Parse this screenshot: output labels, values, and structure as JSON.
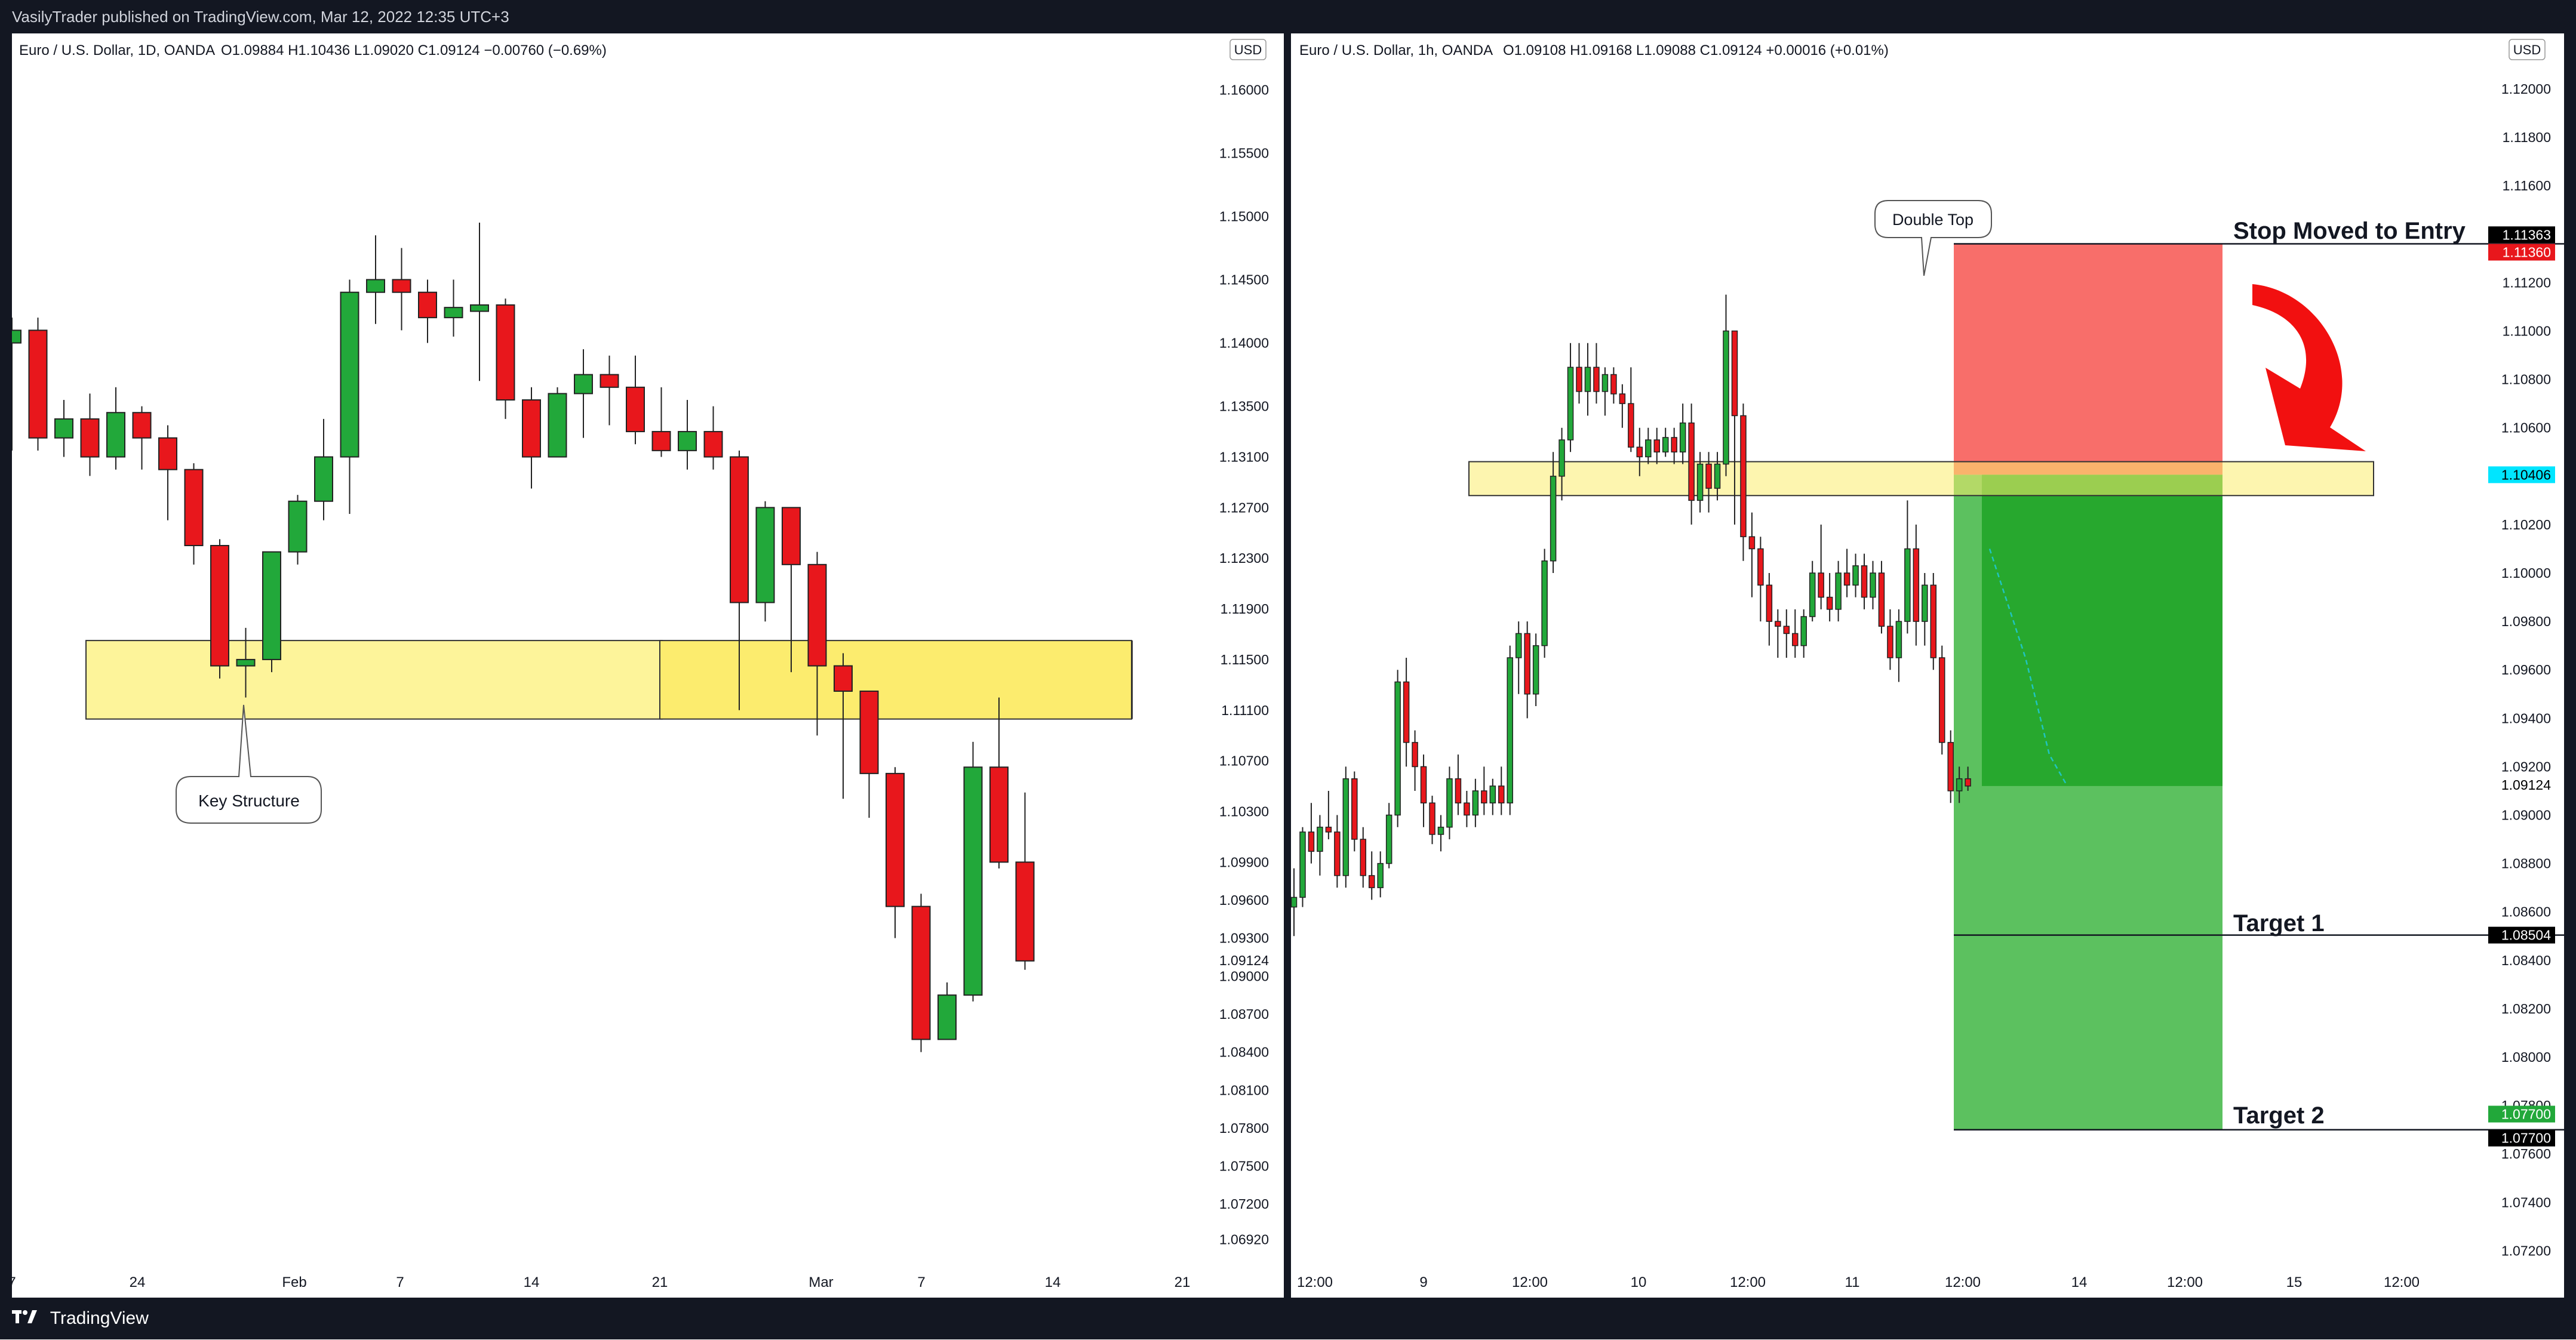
{
  "header": {
    "publish_line": "VasilyTrader published on TradingView.com, Mar 12, 2022 12:35 UTC+3"
  },
  "footer": {
    "brand": "TradingView"
  },
  "colors": {
    "up": "#22a83a",
    "down": "#e8171c",
    "zone": "#fdf49a",
    "zone_dark": "#fcec6e",
    "stop_zone": "#f86e6a",
    "target_zone": "#5cc15f",
    "target_inner": "#27a82e"
  },
  "chart_data": [
    {
      "type": "candlestick",
      "title": "Euro / U.S. Dollar, 1D, OANDA",
      "ohlc_text": "O1.09884  H1.10436  L1.09020  C1.09124  −0.00760 (−0.69%)",
      "currency": "USD",
      "y_ticks": [
        "1.16000",
        "1.15500",
        "1.15000",
        "1.14500",
        "1.14000",
        "1.13500",
        "1.13100",
        "1.12700",
        "1.12300",
        "1.11900",
        "1.11500",
        "1.11100",
        "1.10700",
        "1.10300",
        "1.09900",
        "1.09600",
        "1.09300",
        "1.09000",
        "1.08700",
        "1.08400",
        "1.08100",
        "1.07800",
        "1.07500",
        "1.07200",
        "1.06920"
      ],
      "last_price": "1.09124",
      "ylim": [
        1.0664,
        1.1635
      ],
      "x_ticks": [
        "7",
        "24",
        "Feb",
        "7",
        "14",
        "21",
        "Mar",
        "7",
        "14",
        "21"
      ],
      "candles": [
        {
          "o": 1.14,
          "h": 1.142,
          "l": 1.1315,
          "c": 1.141
        },
        {
          "o": 1.141,
          "h": 1.142,
          "l": 1.1315,
          "c": 1.1325
        },
        {
          "o": 1.1325,
          "h": 1.1355,
          "l": 1.131,
          "c": 1.134
        },
        {
          "o": 1.134,
          "h": 1.136,
          "l": 1.1295,
          "c": 1.131
        },
        {
          "o": 1.131,
          "h": 1.1365,
          "l": 1.13,
          "c": 1.1345
        },
        {
          "o": 1.1345,
          "h": 1.135,
          "l": 1.13,
          "c": 1.1325
        },
        {
          "o": 1.1325,
          "h": 1.1335,
          "l": 1.126,
          "c": 1.13
        },
        {
          "o": 1.13,
          "h": 1.1305,
          "l": 1.1225,
          "c": 1.124
        },
        {
          "o": 1.124,
          "h": 1.1245,
          "l": 1.1135,
          "c": 1.1145
        },
        {
          "o": 1.1145,
          "h": 1.1175,
          "l": 1.112,
          "c": 1.115
        },
        {
          "o": 1.115,
          "h": 1.123,
          "l": 1.114,
          "c": 1.1235
        },
        {
          "o": 1.1235,
          "h": 1.128,
          "l": 1.1225,
          "c": 1.1275
        },
        {
          "o": 1.1275,
          "h": 1.134,
          "l": 1.126,
          "c": 1.131
        },
        {
          "o": 1.131,
          "h": 1.145,
          "l": 1.1265,
          "c": 1.144
        },
        {
          "o": 1.144,
          "h": 1.1485,
          "l": 1.1415,
          "c": 1.145
        },
        {
          "o": 1.145,
          "h": 1.1475,
          "l": 1.141,
          "c": 1.144
        },
        {
          "o": 1.144,
          "h": 1.145,
          "l": 1.14,
          "c": 1.142
        },
        {
          "o": 1.142,
          "h": 1.145,
          "l": 1.1405,
          "c": 1.1428
        },
        {
          "o": 1.1425,
          "h": 1.1495,
          "l": 1.137,
          "c": 1.143
        },
        {
          "o": 1.143,
          "h": 1.1435,
          "l": 1.134,
          "c": 1.1355
        },
        {
          "o": 1.1355,
          "h": 1.1365,
          "l": 1.1285,
          "c": 1.131
        },
        {
          "o": 1.131,
          "h": 1.1365,
          "l": 1.131,
          "c": 1.136
        },
        {
          "o": 1.136,
          "h": 1.1395,
          "l": 1.1325,
          "c": 1.1375
        },
        {
          "o": 1.1375,
          "h": 1.139,
          "l": 1.1335,
          "c": 1.1365
        },
        {
          "o": 1.1365,
          "h": 1.139,
          "l": 1.132,
          "c": 1.133
        },
        {
          "o": 1.133,
          "h": 1.1365,
          "l": 1.131,
          "c": 1.1315
        },
        {
          "o": 1.1315,
          "h": 1.1355,
          "l": 1.13,
          "c": 1.133
        },
        {
          "o": 1.133,
          "h": 1.135,
          "l": 1.13,
          "c": 1.131
        },
        {
          "o": 1.131,
          "h": 1.1315,
          "l": 1.111,
          "c": 1.1195
        },
        {
          "o": 1.1195,
          "h": 1.1275,
          "l": 1.118,
          "c": 1.127
        },
        {
          "o": 1.127,
          "h": 1.127,
          "l": 1.114,
          "c": 1.1225
        },
        {
          "o": 1.1225,
          "h": 1.1235,
          "l": 1.109,
          "c": 1.1145
        },
        {
          "o": 1.1145,
          "h": 1.1155,
          "l": 1.104,
          "c": 1.1125
        },
        {
          "o": 1.1125,
          "h": 1.1125,
          "l": 1.1025,
          "c": 1.106
        },
        {
          "o": 1.106,
          "h": 1.1065,
          "l": 1.093,
          "c": 1.0955
        },
        {
          "o": 1.0955,
          "h": 1.0965,
          "l": 1.084,
          "c": 1.085
        },
        {
          "o": 1.085,
          "h": 1.0895,
          "l": 1.085,
          "c": 1.0885
        },
        {
          "o": 1.0885,
          "h": 1.1085,
          "l": 1.088,
          "c": 1.1065
        },
        {
          "o": 1.1065,
          "h": 1.112,
          "l": 1.0985,
          "c": 1.099
        },
        {
          "o": 1.099,
          "h": 1.1045,
          "l": 1.0905,
          "c": 1.0912
        }
      ],
      "annotations": [
        {
          "text": "Key Structure"
        }
      ]
    },
    {
      "type": "candlestick",
      "title": "Euro / U.S. Dollar, 1h, OANDA",
      "ohlc_text": "O1.09108  H1.09168  L1.09088  C1.09124  +0.00016 (+0.01%)",
      "currency": "USD",
      "y_ticks": [
        "1.12000",
        "1.11800",
        "1.11600",
        "1.11400",
        "1.11200",
        "1.11000",
        "1.10800",
        "1.10600",
        "1.10400",
        "1.10200",
        "1.10000",
        "1.09800",
        "1.09600",
        "1.09400",
        "1.09200",
        "1.09000",
        "1.08800",
        "1.08600",
        "1.08400",
        "1.08200",
        "1.08000",
        "1.07800",
        "1.07600",
        "1.07400",
        "1.07200"
      ],
      "ylim": [
        1.071,
        1.1218
      ],
      "x_ticks": [
        "12:00",
        "9",
        "12:00",
        "10",
        "12:00",
        "11",
        "12:00",
        "14",
        "12:00",
        "15",
        "12:00"
      ],
      "price_labels": [
        {
          "text": "1.11363",
          "bg": "#000000",
          "color": "#ffffff",
          "y": 1.11363
        },
        {
          "text": "1.11360",
          "bg": "#e8171c",
          "color": "#ffffff",
          "y": 1.1136
        },
        {
          "text": "1.10406",
          "bg": "#00e5ff",
          "color": "#000000",
          "y": 1.10406
        },
        {
          "text": "1.09124",
          "bg": "#ffffff",
          "color": "#000000",
          "y": 1.09124
        },
        {
          "text": "1.08504",
          "bg": "#000000",
          "color": "#ffffff",
          "y": 1.08504
        },
        {
          "text": "1.07700",
          "bg": "#22a83a",
          "color": "#ffffff",
          "y": 1.0773
        },
        {
          "text": "1.07700",
          "bg": "#000000",
          "color": "#ffffff",
          "y": 1.077
        }
      ],
      "levels": {
        "stop": 1.1136,
        "entry": 1.10406,
        "target1": 1.08504,
        "target2": 1.077
      },
      "annotations": [
        {
          "text": "Double Top"
        },
        {
          "text": "Stop Moved to Entry"
        },
        {
          "text": "Target 1"
        },
        {
          "text": "Target 2"
        }
      ],
      "candles": [
        {
          "o": 1.0862,
          "h": 1.0878,
          "l": 1.085,
          "c": 1.0866
        },
        {
          "o": 1.0866,
          "h": 1.0895,
          "l": 1.0862,
          "c": 1.0893
        },
        {
          "o": 1.0893,
          "h": 1.0905,
          "l": 1.088,
          "c": 1.0885
        },
        {
          "o": 1.0885,
          "h": 1.09,
          "l": 1.0875,
          "c": 1.0895
        },
        {
          "o": 1.0895,
          "h": 1.091,
          "l": 1.089,
          "c": 1.0893
        },
        {
          "o": 1.0893,
          "h": 1.09,
          "l": 1.087,
          "c": 1.0875
        },
        {
          "o": 1.0875,
          "h": 1.092,
          "l": 1.087,
          "c": 1.0915
        },
        {
          "o": 1.0915,
          "h": 1.0918,
          "l": 1.0885,
          "c": 1.089
        },
        {
          "o": 1.089,
          "h": 1.0895,
          "l": 1.087,
          "c": 1.0875
        },
        {
          "o": 1.0875,
          "h": 1.0885,
          "l": 1.0865,
          "c": 1.087
        },
        {
          "o": 1.087,
          "h": 1.0885,
          "l": 1.0866,
          "c": 1.088
        },
        {
          "o": 1.088,
          "h": 1.0905,
          "l": 1.0878,
          "c": 1.09
        },
        {
          "o": 1.09,
          "h": 1.096,
          "l": 1.0895,
          "c": 1.0955
        },
        {
          "o": 1.0955,
          "h": 1.0965,
          "l": 1.092,
          "c": 1.093
        },
        {
          "o": 1.093,
          "h": 1.0935,
          "l": 1.091,
          "c": 1.092
        },
        {
          "o": 1.092,
          "h": 1.0925,
          "l": 1.0895,
          "c": 1.0905
        },
        {
          "o": 1.0905,
          "h": 1.0908,
          "l": 1.0888,
          "c": 1.0892
        },
        {
          "o": 1.0892,
          "h": 1.09,
          "l": 1.0885,
          "c": 1.0895
        },
        {
          "o": 1.0895,
          "h": 1.092,
          "l": 1.089,
          "c": 1.0915
        },
        {
          "o": 1.0915,
          "h": 1.0925,
          "l": 1.09,
          "c": 1.0905
        },
        {
          "o": 1.0905,
          "h": 1.091,
          "l": 1.0895,
          "c": 1.09
        },
        {
          "o": 1.09,
          "h": 1.0915,
          "l": 1.0895,
          "c": 1.091
        },
        {
          "o": 1.091,
          "h": 1.092,
          "l": 1.09,
          "c": 1.0905
        },
        {
          "o": 1.0905,
          "h": 1.0915,
          "l": 1.09,
          "c": 1.0912
        },
        {
          "o": 1.0912,
          "h": 1.092,
          "l": 1.09,
          "c": 1.0905
        },
        {
          "o": 1.0905,
          "h": 1.097,
          "l": 1.09,
          "c": 1.0965
        },
        {
          "o": 1.0965,
          "h": 1.098,
          "l": 1.095,
          "c": 1.0975
        },
        {
          "o": 1.0975,
          "h": 1.098,
          "l": 1.094,
          "c": 1.095
        },
        {
          "o": 1.095,
          "h": 1.0975,
          "l": 1.0945,
          "c": 1.097
        },
        {
          "o": 1.097,
          "h": 1.101,
          "l": 1.0965,
          "c": 1.1005
        },
        {
          "o": 1.1005,
          "h": 1.105,
          "l": 1.1,
          "c": 1.104
        },
        {
          "o": 1.104,
          "h": 1.106,
          "l": 1.103,
          "c": 1.1055
        },
        {
          "o": 1.1055,
          "h": 1.1095,
          "l": 1.105,
          "c": 1.1085
        },
        {
          "o": 1.1085,
          "h": 1.1095,
          "l": 1.107,
          "c": 1.1075
        },
        {
          "o": 1.1075,
          "h": 1.1095,
          "l": 1.1065,
          "c": 1.1085
        },
        {
          "o": 1.1085,
          "h": 1.1095,
          "l": 1.107,
          "c": 1.1075
        },
        {
          "o": 1.1075,
          "h": 1.1085,
          "l": 1.1065,
          "c": 1.1082
        },
        {
          "o": 1.1082,
          "h": 1.1085,
          "l": 1.107,
          "c": 1.1074
        },
        {
          "o": 1.1074,
          "h": 1.1078,
          "l": 1.106,
          "c": 1.107
        },
        {
          "o": 1.107,
          "h": 1.1085,
          "l": 1.105,
          "c": 1.1052
        },
        {
          "o": 1.1052,
          "h": 1.106,
          "l": 1.104,
          "c": 1.1048
        },
        {
          "o": 1.1048,
          "h": 1.106,
          "l": 1.1045,
          "c": 1.1055
        },
        {
          "o": 1.1055,
          "h": 1.106,
          "l": 1.1045,
          "c": 1.105
        },
        {
          "o": 1.105,
          "h": 1.106,
          "l": 1.1048,
          "c": 1.1056
        },
        {
          "o": 1.1056,
          "h": 1.106,
          "l": 1.1045,
          "c": 1.105
        },
        {
          "o": 1.105,
          "h": 1.107,
          "l": 1.1045,
          "c": 1.1062
        },
        {
          "o": 1.1062,
          "h": 1.107,
          "l": 1.102,
          "c": 1.103
        },
        {
          "o": 1.103,
          "h": 1.105,
          "l": 1.1025,
          "c": 1.1045
        },
        {
          "o": 1.1045,
          "h": 1.105,
          "l": 1.1025,
          "c": 1.1035
        },
        {
          "o": 1.1035,
          "h": 1.105,
          "l": 1.103,
          "c": 1.1045
        },
        {
          "o": 1.1045,
          "h": 1.1115,
          "l": 1.104,
          "c": 1.11
        },
        {
          "o": 1.11,
          "h": 1.11,
          "l": 1.102,
          "c": 1.1065
        },
        {
          "o": 1.1065,
          "h": 1.107,
          "l": 1.1005,
          "c": 1.1015
        },
        {
          "o": 1.1015,
          "h": 1.1025,
          "l": 1.099,
          "c": 1.101
        },
        {
          "o": 1.101,
          "h": 1.1015,
          "l": 1.098,
          "c": 1.0995
        },
        {
          "o": 1.0995,
          "h": 1.1,
          "l": 1.097,
          "c": 1.098
        },
        {
          "o": 1.098,
          "h": 1.0985,
          "l": 1.0965,
          "c": 1.0978
        },
        {
          "o": 1.0978,
          "h": 1.0985,
          "l": 1.0965,
          "c": 1.0975
        },
        {
          "o": 1.0975,
          "h": 1.0985,
          "l": 1.0965,
          "c": 1.097
        },
        {
          "o": 1.097,
          "h": 1.0985,
          "l": 1.0965,
          "c": 1.0982
        },
        {
          "o": 1.0982,
          "h": 1.1005,
          "l": 1.098,
          "c": 1.1
        },
        {
          "o": 1.1,
          "h": 1.102,
          "l": 1.0985,
          "c": 1.099
        },
        {
          "o": 1.099,
          "h": 1.1,
          "l": 1.098,
          "c": 1.0985
        },
        {
          "o": 1.0985,
          "h": 1.1005,
          "l": 1.098,
          "c": 1.1
        },
        {
          "o": 1.1,
          "h": 1.101,
          "l": 1.099,
          "c": 1.0995
        },
        {
          "o": 1.0995,
          "h": 1.1008,
          "l": 1.099,
          "c": 1.1003
        },
        {
          "o": 1.1003,
          "h": 1.1008,
          "l": 1.0985,
          "c": 1.099
        },
        {
          "o": 1.099,
          "h": 1.1005,
          "l": 1.0985,
          "c": 1.1
        },
        {
          "o": 1.1,
          "h": 1.1005,
          "l": 1.0975,
          "c": 1.0978
        },
        {
          "o": 1.0978,
          "h": 1.0985,
          "l": 1.096,
          "c": 1.0965
        },
        {
          "o": 1.0965,
          "h": 1.0985,
          "l": 1.0955,
          "c": 1.098
        },
        {
          "o": 1.098,
          "h": 1.103,
          "l": 1.0975,
          "c": 1.101
        },
        {
          "o": 1.101,
          "h": 1.102,
          "l": 1.097,
          "c": 1.098
        },
        {
          "o": 1.098,
          "h": 1.1,
          "l": 1.097,
          "c": 1.0995
        },
        {
          "o": 1.0995,
          "h": 1.1,
          "l": 1.096,
          "c": 1.0965
        },
        {
          "o": 1.0965,
          "h": 1.097,
          "l": 1.0925,
          "c": 1.093
        },
        {
          "o": 1.093,
          "h": 1.0935,
          "l": 1.0905,
          "c": 1.091
        },
        {
          "o": 1.091,
          "h": 1.092,
          "l": 1.0905,
          "c": 1.0915
        },
        {
          "o": 1.0915,
          "h": 1.092,
          "l": 1.091,
          "c": 1.0912
        }
      ]
    }
  ]
}
